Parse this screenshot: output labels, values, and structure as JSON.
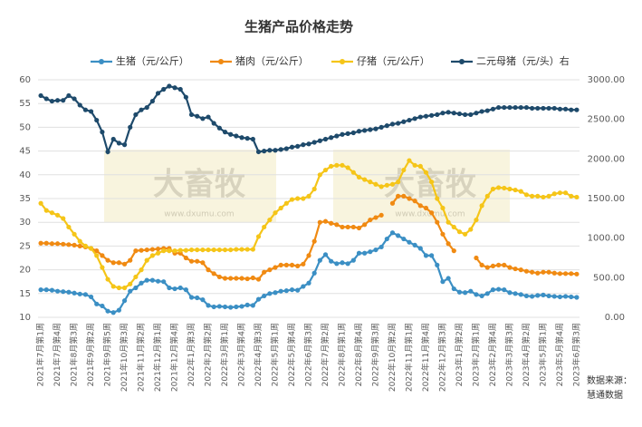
{
  "chart_data": {
    "type": "line",
    "title": "生猪产品价格走势",
    "categories": [
      "2021年7月第1周",
      null,
      null,
      "2021年7月第4周",
      null,
      null,
      "2021年8月第3周",
      null,
      null,
      "2021年9月第2周",
      null,
      null,
      "2021年9月第5周",
      null,
      null,
      "2021年10月第3周",
      null,
      null,
      "2021年11月第2周",
      null,
      null,
      "2021年12月第1周",
      null,
      null,
      "2021年12月第4周",
      null,
      null,
      "2022年1月第3周",
      null,
      null,
      "2022年2月第2周",
      null,
      null,
      "2022年3月第1周",
      null,
      null,
      "2022年3月第4周",
      null,
      null,
      "2022年4月第3周",
      null,
      null,
      "2022年5月第1周",
      null,
      null,
      "2022年5月第4周",
      null,
      null,
      "2022年6月第3周",
      null,
      null,
      "2022年7月第2周",
      null,
      null,
      "2022年8月第1周",
      null,
      null,
      "2022年8月第4周",
      null,
      null,
      "2022年9月第3周",
      null,
      null,
      "2022年10月第2周",
      null,
      null,
      "2022年11月第1周",
      null,
      null,
      "2022年11月第4周",
      null,
      null,
      "2022年12月第3周",
      null,
      null,
      "2023年1月第2周",
      null,
      null,
      "2023年2月第1周",
      null,
      null,
      "2023年2月第4周",
      null,
      null,
      "2023年3月第3周",
      null,
      null,
      "2023年4月第2周",
      null,
      null,
      "2023年5月第1周",
      null,
      null,
      "2023年5月第4周",
      null,
      null,
      "2023年6月第3周"
    ],
    "series": [
      {
        "name": "生猪（元/公斤）",
        "color": "#3b8fc4",
        "values": [
          15.8,
          15.8,
          15.7,
          15.5,
          15.4,
          15.3,
          15.1,
          14.9,
          14.8,
          14.3,
          12.8,
          12.4,
          11.3,
          11.0,
          11.5,
          13.5,
          15.5,
          16.2,
          17.2,
          17.8,
          17.8,
          17.6,
          17.5,
          16.2,
          16.0,
          16.2,
          15.8,
          14.2,
          14.1,
          13.7,
          12.5,
          12.2,
          12.3,
          12.2,
          12.1,
          12.2,
          12.3,
          12.6,
          12.5,
          13.8,
          14.5,
          15,
          15.2,
          15.5,
          15.6,
          15.8,
          15.7,
          16.5,
          17.2,
          19.3,
          22,
          23.2,
          21.8,
          21.3,
          21.5,
          21.3,
          22,
          23.5,
          23.5,
          23.8,
          24.2,
          24.8,
          26.5,
          27.8,
          27.2,
          26.5,
          25.8,
          25.2,
          24.5,
          23,
          23,
          21,
          17.5,
          18.2,
          16,
          15.3,
          15.2,
          15.5,
          14.8,
          14.5,
          15,
          15.8,
          15.9,
          15.8,
          15.2,
          15,
          14.8,
          14.5,
          14.4,
          14.6,
          14.7,
          14.5,
          14.4,
          14.3,
          14.4,
          14.3,
          14.2
        ]
      },
      {
        "name": "猪肉（元/公斤）",
        "color": "#f08a12",
        "values": [
          25.6,
          25.6,
          25.5,
          25.5,
          25.4,
          25.3,
          25.2,
          25,
          24.8,
          24.5,
          24,
          23,
          22,
          21.5,
          21.5,
          21.2,
          22,
          24,
          24.1,
          24.2,
          24.3,
          24.4,
          24.5,
          24.5,
          23.5,
          23.5,
          22.5,
          21.8,
          21.8,
          21.5,
          20,
          19.2,
          18.5,
          18.2,
          18.2,
          18.2,
          18.2,
          18.1,
          18.3,
          18,
          19.5,
          20,
          20.5,
          21,
          21,
          21,
          20.8,
          21.2,
          23,
          26,
          30,
          30.2,
          29.8,
          29.5,
          29,
          29,
          29,
          28.8,
          29.5,
          30.5,
          31,
          31.5,
          null,
          34,
          35.5,
          35.5,
          35,
          34.5,
          33.5,
          33,
          32,
          30,
          27.5,
          25.5,
          24,
          null,
          null,
          null,
          22.5,
          21,
          20.5,
          20.8,
          21,
          21,
          20.5,
          20.2,
          20,
          19.7,
          19.5,
          19.3,
          19.5,
          19.5,
          19.3,
          19.2,
          19.2,
          19.2,
          19.1
        ]
      },
      {
        "name": "仔猪（元/公斤）",
        "color": "#f5c518",
        "values": [
          34,
          32.5,
          32,
          31.5,
          30.8,
          29,
          27.5,
          26,
          25,
          24.5,
          23,
          20.5,
          18,
          16.5,
          16.2,
          16.2,
          17,
          18.5,
          20,
          22,
          23,
          23.5,
          24,
          24,
          24,
          24.1,
          24.1,
          24.2,
          24.2,
          24.2,
          24.2,
          24.2,
          24.2,
          24.2,
          24.2,
          24.3,
          24.3,
          24.3,
          24.3,
          27,
          29,
          30.5,
          32,
          33,
          34,
          34.8,
          35,
          35,
          35.5,
          37,
          40,
          41,
          41.8,
          42,
          42,
          41.5,
          40.5,
          39.5,
          39,
          38.5,
          38,
          37.5,
          37.8,
          38,
          38.5,
          41,
          43,
          42,
          41.8,
          40.5,
          38.5,
          35,
          33,
          30,
          29,
          28,
          27.5,
          28.5,
          30.5,
          33.5,
          35.5,
          37,
          37.3,
          37.2,
          37,
          36.8,
          36.5,
          35.8,
          35.5,
          35.5,
          35.3,
          35.5,
          36,
          36.2,
          36.2,
          35.5,
          35.3
        ]
      },
      {
        "name": "二元母猪（元/头）右",
        "color": "#1e4a6b",
        "axis": "y2",
        "values": [
          2800,
          2760,
          2730,
          2740,
          2740,
          2800,
          2760,
          2680,
          2620,
          2600,
          2490,
          2340,
          2090,
          2250,
          2200,
          2180,
          2400,
          2560,
          2620,
          2650,
          2730,
          2830,
          2880,
          2920,
          2900,
          2880,
          2780,
          2560,
          2540,
          2510,
          2530,
          2450,
          2390,
          2340,
          2310,
          2290,
          2270,
          2260,
          2250,
          2090,
          2100,
          2110,
          2110,
          2120,
          2130,
          2150,
          2160,
          2180,
          2190,
          2210,
          2230,
          2250,
          2270,
          2290,
          2310,
          2320,
          2330,
          2350,
          2360,
          2370,
          2380,
          2400,
          2420,
          2440,
          2450,
          2470,
          2490,
          2510,
          2530,
          2540,
          2550,
          2560,
          2580,
          2590,
          2580,
          2570,
          2560,
          2560,
          2580,
          2600,
          2610,
          2630,
          2650,
          2650,
          2650,
          2650,
          2650,
          2650,
          2640,
          2640,
          2640,
          2640,
          2640,
          2630,
          2630,
          2620,
          2620
        ]
      }
    ],
    "ylim": [
      10,
      60
    ],
    "yticks": [
      10,
      15,
      20,
      25,
      30,
      35,
      40,
      45,
      50,
      55,
      60
    ],
    "y2lim": [
      0,
      3000
    ],
    "y2ticks": [
      {
        "value": 0,
        "label": "0.00"
      },
      {
        "value": 500,
        "label": "500.00"
      },
      {
        "value": 1000,
        "label": "1000.00"
      },
      {
        "value": 1500,
        "label": "1500.00"
      },
      {
        "value": 2000,
        "label": "2000.00"
      },
      {
        "value": 2500,
        "label": "2500.00"
      },
      {
        "value": 3000,
        "label": "3000.00"
      }
    ],
    "grid": true,
    "legend": "top",
    "source": [
      "数据来源：",
      "慧通数据"
    ],
    "watermark": [
      "大畜牧",
      "www.dxumu.com"
    ]
  }
}
